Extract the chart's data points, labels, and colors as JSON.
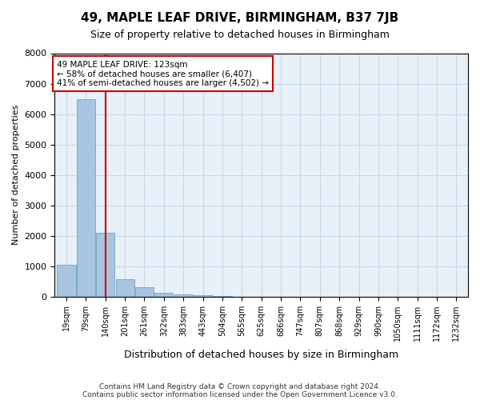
{
  "title": "49, MAPLE LEAF DRIVE, BIRMINGHAM, B37 7JB",
  "subtitle": "Size of property relative to detached houses in Birmingham",
  "xlabel": "Distribution of detached houses by size in Birmingham",
  "ylabel": "Number of detached properties",
  "bins": [
    "19sqm",
    "79sqm",
    "140sqm",
    "201sqm",
    "261sqm",
    "322sqm",
    "383sqm",
    "443sqm",
    "504sqm",
    "565sqm",
    "625sqm",
    "686sqm",
    "747sqm",
    "807sqm",
    "868sqm",
    "929sqm",
    "990sqm",
    "1050sqm",
    "1111sqm",
    "1172sqm",
    "1232sqm"
  ],
  "values": [
    1050,
    6500,
    2100,
    570,
    310,
    130,
    80,
    40,
    10,
    0,
    0,
    0,
    0,
    0,
    0,
    0,
    0,
    0,
    0,
    0,
    0
  ],
  "bar_color": "#a8c4e0",
  "bar_edge_color": "#5a9abf",
  "grid_color": "#c8d8e8",
  "background_color": "#e8f0f8",
  "property_line_x": 2.0,
  "property_line_color": "#cc0000",
  "annotation_text": "49 MAPLE LEAF DRIVE: 123sqm\n← 58% of detached houses are smaller (6,407)\n41% of semi-detached houses are larger (4,502) →",
  "annotation_box_color": "#ffffff",
  "annotation_box_edge": "#cc0000",
  "ylim": [
    0,
    8000
  ],
  "yticks": [
    0,
    1000,
    2000,
    3000,
    4000,
    5000,
    6000,
    7000,
    8000
  ],
  "footer_line1": "Contains HM Land Registry data © Crown copyright and database right 2024.",
  "footer_line2": "Contains public sector information licensed under the Open Government Licence v3.0."
}
